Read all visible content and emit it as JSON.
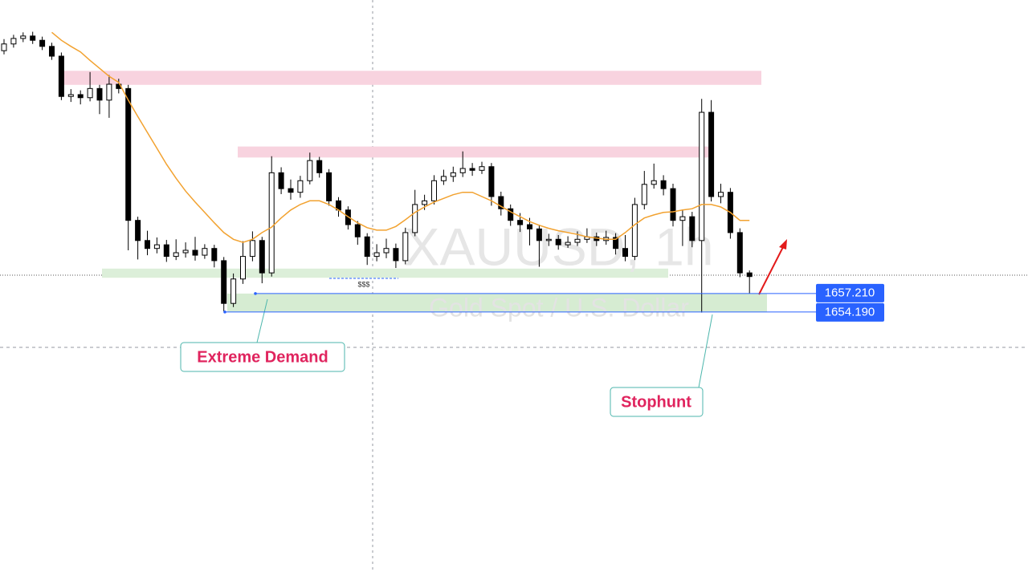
{
  "chart_data": {
    "type": "candlestick",
    "watermark": "XAUUSD, 1h",
    "subtitle": "Gold Spot / U.S. Dollar",
    "ylim": [
      1611.6,
      1705.3
    ],
    "open": [
      1697.0,
      1698.1,
      1699.0,
      1699.4,
      1698.7,
      1697.7,
      1696.1,
      1689.5,
      1689.8,
      1689.3,
      1690.8,
      1688.9,
      1691.5,
      1690.8,
      1669.2,
      1665.9,
      1664.6,
      1665.2,
      1663.3,
      1663.9,
      1664.3,
      1663.5,
      1664.6,
      1662.6,
      1655.6,
      1659.6,
      1663.3,
      1665.9,
      1660.6,
      1677.0,
      1674.4,
      1673.8,
      1675.7,
      1679.0,
      1677.0,
      1672.4,
      1670.9,
      1668.5,
      1666.5,
      1663.3,
      1663.9,
      1664.6,
      1662.6,
      1667.2,
      1671.8,
      1672.4,
      1675.7,
      1676.4,
      1677.0,
      1677.7,
      1677.4,
      1678.0,
      1673.1,
      1671.1,
      1669.2,
      1668.5,
      1667.8,
      1665.9,
      1666.1,
      1665.2,
      1665.6,
      1666.1,
      1666.5,
      1665.9,
      1666.4,
      1664.6,
      1663.3,
      1671.8,
      1675.1,
      1675.7,
      1674.4,
      1669.2,
      1669.8,
      1665.9,
      1686.9,
      1673.1,
      1673.8,
      1667.2,
      1660.6
    ],
    "high": [
      1698.9,
      1699.6,
      1700.0,
      1700.1,
      1699.3,
      1698.3,
      1696.7,
      1690.7,
      1690.5,
      1693.5,
      1691.4,
      1693.0,
      1692.4,
      1691.4,
      1669.8,
      1667.5,
      1666.4,
      1666.0,
      1666.1,
      1665.6,
      1666.5,
      1665.3,
      1665.2,
      1663.2,
      1660.5,
      1665.8,
      1667.4,
      1666.5,
      1679.7,
      1677.9,
      1675.9,
      1676.5,
      1680.3,
      1679.6,
      1677.6,
      1673.0,
      1671.5,
      1669.1,
      1667.1,
      1665.3,
      1666.2,
      1665.4,
      1668.0,
      1674.2,
      1673.4,
      1676.6,
      1677.5,
      1678.0,
      1680.5,
      1678.6,
      1678.8,
      1678.6,
      1673.9,
      1671.8,
      1670.4,
      1669.6,
      1668.5,
      1667.0,
      1666.8,
      1666.6,
      1667.4,
      1667.9,
      1667.2,
      1667.5,
      1667.1,
      1666.8,
      1672.9,
      1677.3,
      1678.5,
      1676.6,
      1675.2,
      1671.0,
      1670.6,
      1689.1,
      1688.9,
      1675.2,
      1674.5,
      1667.9,
      1661.0
    ],
    "low": [
      1696.4,
      1697.5,
      1698.4,
      1698.1,
      1697.1,
      1695.5,
      1688.9,
      1688.6,
      1688.2,
      1688.7,
      1686.6,
      1686.0,
      1690.0,
      1664.3,
      1662.8,
      1663.5,
      1663.8,
      1662.4,
      1662.7,
      1663.1,
      1662.6,
      1662.9,
      1661.5,
      1654.3,
      1655.0,
      1658.8,
      1662.5,
      1658.9,
      1660.0,
      1673.5,
      1672.6,
      1672.9,
      1675.1,
      1676.2,
      1671.6,
      1669.8,
      1667.7,
      1665.2,
      1661.9,
      1662.5,
      1663.0,
      1661.4,
      1662.0,
      1666.6,
      1670.9,
      1671.8,
      1675.0,
      1675.5,
      1676.3,
      1676.5,
      1676.8,
      1671.6,
      1670.0,
      1668.3,
      1667.3,
      1665.1,
      1661.6,
      1665.0,
      1664.4,
      1664.7,
      1665.0,
      1665.5,
      1665.0,
      1665.2,
      1663.6,
      1662.5,
      1662.7,
      1671.0,
      1674.4,
      1673.3,
      1668.2,
      1665.0,
      1664.8,
      1654.1,
      1672.3,
      1672.0,
      1666.2,
      1659.9,
      1657.2
    ],
    "close": [
      1698.1,
      1699.0,
      1699.4,
      1698.7,
      1697.7,
      1696.1,
      1689.5,
      1689.8,
      1689.3,
      1690.8,
      1688.9,
      1691.5,
      1690.8,
      1669.2,
      1665.9,
      1664.6,
      1665.2,
      1663.3,
      1663.9,
      1664.3,
      1663.5,
      1664.6,
      1662.6,
      1655.6,
      1659.6,
      1663.3,
      1665.9,
      1660.6,
      1677.0,
      1674.4,
      1673.8,
      1675.7,
      1679.0,
      1677.0,
      1672.4,
      1670.9,
      1668.5,
      1666.5,
      1663.3,
      1663.9,
      1664.6,
      1662.6,
      1667.2,
      1671.8,
      1672.4,
      1675.7,
      1676.4,
      1677.0,
      1677.7,
      1677.4,
      1678.0,
      1673.1,
      1671.1,
      1669.2,
      1668.5,
      1667.8,
      1665.9,
      1666.1,
      1665.2,
      1665.6,
      1666.1,
      1666.5,
      1665.9,
      1666.4,
      1664.6,
      1663.3,
      1671.8,
      1675.1,
      1675.7,
      1674.4,
      1669.2,
      1669.8,
      1665.9,
      1686.9,
      1673.1,
      1673.8,
      1667.2,
      1660.6,
      1660.0
    ],
    "up_color": "#ffffff",
    "down_color": "#000000",
    "moving_average": {
      "color": "#f2a230",
      "values": [
        null,
        null,
        null,
        null,
        null,
        1700.0,
        1698.7,
        1697.7,
        1696.8,
        1695.4,
        1694.1,
        1692.8,
        1691.8,
        1688.9,
        1686.2,
        1683.6,
        1681.0,
        1678.4,
        1676.1,
        1674.0,
        1672.2,
        1670.5,
        1668.8,
        1667.2,
        1666.1,
        1665.6,
        1666.1,
        1667.2,
        1668.1,
        1669.6,
        1670.9,
        1671.8,
        1672.4,
        1672.4,
        1671.8,
        1670.9,
        1669.8,
        1668.8,
        1668.0,
        1667.6,
        1667.6,
        1668.2,
        1669.3,
        1670.5,
        1671.4,
        1672.2,
        1672.8,
        1673.4,
        1673.8,
        1673.8,
        1673.1,
        1672.4,
        1671.5,
        1670.6,
        1669.8,
        1669.0,
        1668.4,
        1667.9,
        1667.5,
        1667.2,
        1666.9,
        1666.5,
        1666.3,
        1666.1,
        1666.1,
        1667.2,
        1668.5,
        1669.6,
        1670.1,
        1670.5,
        1670.6,
        1670.9,
        1671.1,
        1671.8,
        1671.8,
        1671.4,
        1670.5,
        1669.2,
        1669.2
      ]
    },
    "zones": [
      {
        "color": "#f8d3df",
        "low": 1691.4,
        "high": 1693.7
      },
      {
        "color": "#f8d3df",
        "low": 1679.5,
        "high": 1681.3
      },
      {
        "color": "#dcefd9",
        "low": 1659.8,
        "high": 1661.3
      }
    ],
    "demand_color": "#d6ecd2",
    "price_labels": [
      {
        "value": 1657.21,
        "label": "1657.210"
      },
      {
        "value": 1654.19,
        "label": "1654.190"
      }
    ],
    "label_color": "#2962ff",
    "annotations": [
      "Extreme Demand",
      "Stophunt",
      "$$$"
    ]
  }
}
